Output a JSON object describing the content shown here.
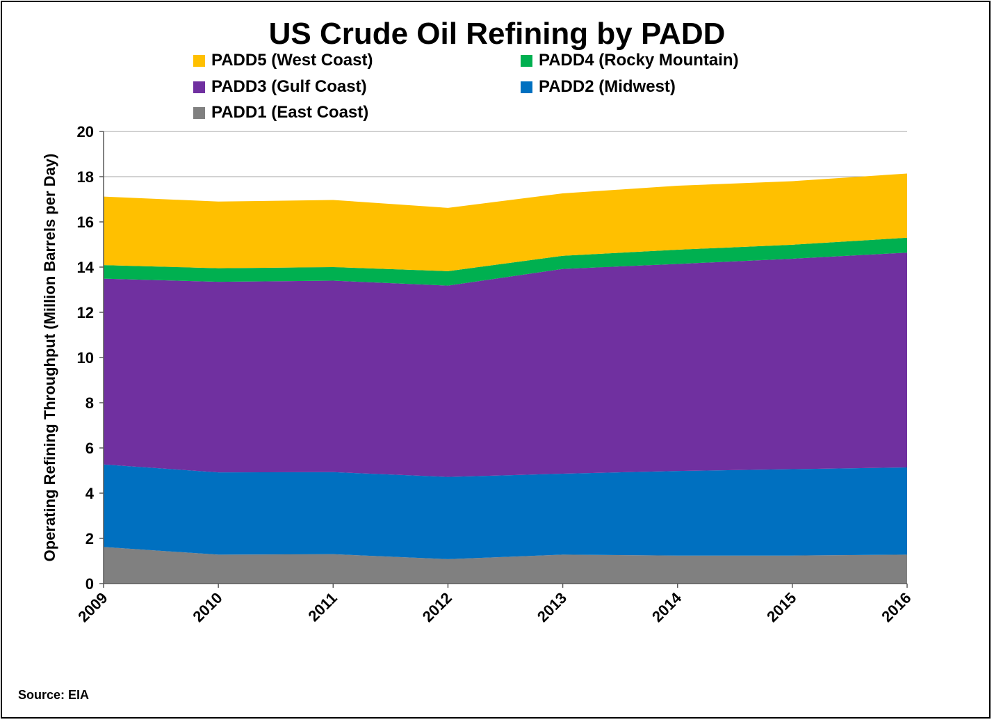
{
  "chart_data": {
    "type": "area",
    "stacked": true,
    "title": "US Crude Oil Refining by PADD",
    "ylabel": "Operating Refining Throughput (Million Barrels per Day)",
    "xlabel": "",
    "x": [
      "2009",
      "2010",
      "2011",
      "2012",
      "2013",
      "2014",
      "2015",
      "2016"
    ],
    "ylim": [
      0,
      20
    ],
    "yticks": [
      0,
      2,
      4,
      6,
      8,
      10,
      12,
      14,
      16,
      18,
      20
    ],
    "grid": true,
    "legend_position": "top",
    "series": [
      {
        "name": "PADD1 (East Coast)",
        "color": "#808080",
        "values": [
          1.62,
          1.28,
          1.3,
          1.08,
          1.28,
          1.24,
          1.24,
          1.28
        ]
      },
      {
        "name": "PADD2 (Midwest)",
        "color": "#0070C0",
        "values": [
          3.65,
          3.64,
          3.63,
          3.64,
          3.58,
          3.74,
          3.82,
          3.86
        ]
      },
      {
        "name": "PADD3 (Gulf Coast)",
        "color": "#7030A0",
        "values": [
          8.22,
          8.43,
          8.47,
          8.46,
          9.06,
          9.16,
          9.31,
          9.5
        ]
      },
      {
        "name": "PADD4 (Rocky Mountain)",
        "color": "#00B050",
        "values": [
          0.6,
          0.6,
          0.6,
          0.64,
          0.58,
          0.63,
          0.62,
          0.66
        ]
      },
      {
        "name": "PADD5 (West Coast)",
        "color": "#FFC000",
        "values": [
          3.03,
          2.95,
          2.97,
          2.8,
          2.76,
          2.83,
          2.81,
          2.84
        ]
      }
    ],
    "source": "Source: EIA"
  },
  "legend": [
    {
      "label": "PADD5 (West Coast)",
      "color": "#FFC000"
    },
    {
      "label": "PADD4 (Rocky Mountain)",
      "color": "#00B050"
    },
    {
      "label": "PADD3 (Gulf Coast)",
      "color": "#7030A0"
    },
    {
      "label": "PADD2 (Midwest)",
      "color": "#0070C0"
    },
    {
      "label": "PADD1 (East Coast)",
      "color": "#808080"
    }
  ]
}
